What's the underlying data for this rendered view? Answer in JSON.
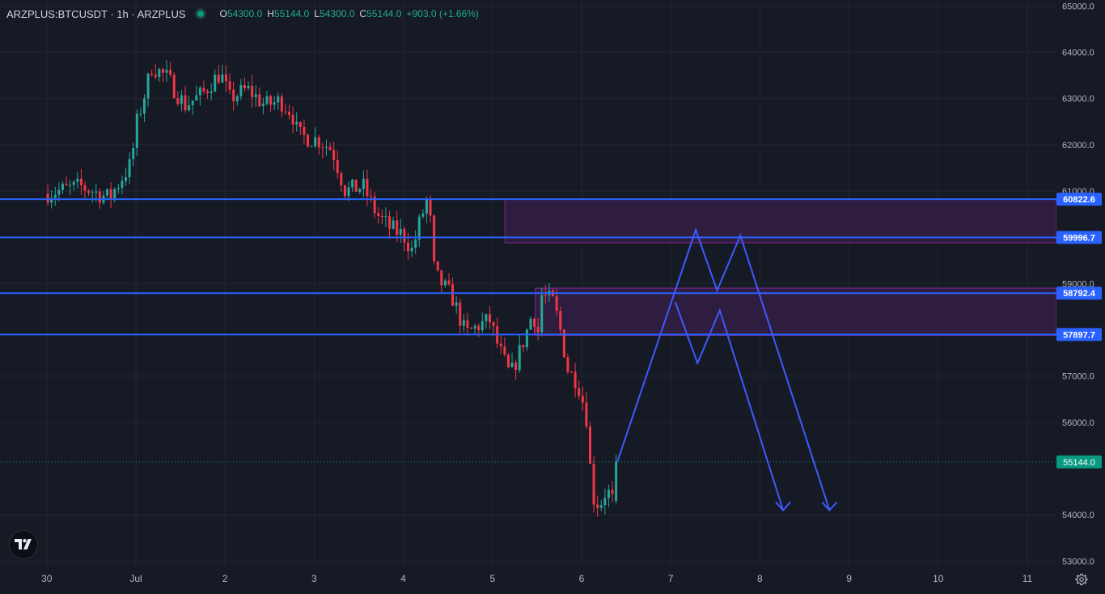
{
  "legend": {
    "symbol": "ARZPLUS:BTCUSDT · 1h · ARZPLUS",
    "open_label": "O",
    "open": "54300.0",
    "high_label": "H",
    "high": "55144.0",
    "low_label": "L",
    "low": "54300.0",
    "close_label": "C",
    "close": "55144.0",
    "change": "+903.0 (+1.66%)"
  },
  "colors": {
    "background": "#161a25",
    "grid": "#232632",
    "up": "#26a69a",
    "down": "#f23645",
    "line": "#2962ff",
    "zone_fill": "#2f1d3f",
    "zone_border": "#9c27b0",
    "last_price": "#089981"
  },
  "price_axis": {
    "ticks": [
      "65000.0",
      "64000.0",
      "63000.0",
      "62000.0",
      "61000.0",
      "59000.0",
      "57000.0",
      "56000.0",
      "54000.0",
      "53000.0"
    ],
    "tick_values": [
      65000,
      64000,
      63000,
      62000,
      61000,
      59000,
      57000,
      56000,
      54000,
      53000
    ]
  },
  "time_axis": {
    "labels": [
      "30",
      "Jul",
      "2",
      "3",
      "4",
      "5",
      "6",
      "7",
      "8",
      "9",
      "10",
      "11"
    ]
  },
  "horizontal_lines": [
    {
      "price": 60822.6,
      "label": "60822.6"
    },
    {
      "price": 59996.7,
      "label": "59996.7"
    },
    {
      "price": 58792.4,
      "label": "58792.4"
    },
    {
      "price": 57897.7,
      "label": "57897.7"
    }
  ],
  "zones": [
    {
      "top": 60822.6,
      "bottom": 59880
    },
    {
      "top": 58900,
      "bottom": 57880
    }
  ],
  "last_price": {
    "value": 55144.0,
    "label": "55144.0"
  },
  "chart_data": {
    "type": "candlestick",
    "interval": "1h",
    "x_unit": "days (0 = Jul 1)",
    "xlim": [
      -1.05,
      11.3
    ],
    "ylim": [
      52850,
      65050
    ],
    "anchors": [
      [
        -1.03,
        60940
      ],
      [
        -0.62,
        61100
      ],
      [
        -0.3,
        60850
      ],
      [
        -0.05,
        61600
      ],
      [
        0.0,
        62400
      ],
      [
        0.12,
        63250
      ],
      [
        0.18,
        63700
      ],
      [
        0.35,
        63450
      ],
      [
        0.55,
        62850
      ],
      [
        0.75,
        63100
      ],
      [
        0.85,
        63350
      ],
      [
        0.95,
        63550
      ],
      [
        1.05,
        63000
      ],
      [
        1.25,
        63200
      ],
      [
        1.45,
        62850
      ],
      [
        1.62,
        62950
      ],
      [
        1.75,
        62700
      ],
      [
        1.82,
        62200
      ],
      [
        2.05,
        62100
      ],
      [
        2.2,
        61900
      ],
      [
        2.35,
        61000
      ],
      [
        2.55,
        61100
      ],
      [
        2.7,
        60500
      ],
      [
        2.85,
        60200
      ],
      [
        3.0,
        60050
      ],
      [
        3.1,
        59700
      ],
      [
        3.18,
        60300
      ],
      [
        3.28,
        60900
      ],
      [
        3.35,
        59200
      ],
      [
        3.55,
        58700
      ],
      [
        3.7,
        57900
      ],
      [
        3.85,
        58100
      ],
      [
        3.97,
        58200
      ],
      [
        4.07,
        57600
      ],
      [
        4.2,
        57000
      ],
      [
        4.3,
        57500
      ],
      [
        4.4,
        58050
      ],
      [
        4.45,
        58400
      ],
      [
        4.52,
        57900
      ],
      [
        4.55,
        58750
      ],
      [
        4.68,
        58600
      ],
      [
        4.75,
        58100
      ],
      [
        4.85,
        57100
      ],
      [
        4.95,
        56900
      ],
      [
        5.05,
        56200
      ],
      [
        5.12,
        54400
      ],
      [
        5.2,
        54200
      ],
      [
        5.28,
        54550
      ],
      [
        5.35,
        54300
      ],
      [
        5.4,
        55144
      ]
    ],
    "drawing_lines": [
      [
        [
          5.4,
          55144
        ],
        [
          6.28,
          60160
        ],
        [
          6.52,
          58850
        ],
        [
          6.78,
          60040
        ],
        [
          7.78,
          54100
        ]
      ],
      [
        [
          6.05,
          58600
        ],
        [
          6.3,
          57280
        ],
        [
          6.55,
          58420
        ],
        [
          7.26,
          54100
        ]
      ]
    ]
  }
}
